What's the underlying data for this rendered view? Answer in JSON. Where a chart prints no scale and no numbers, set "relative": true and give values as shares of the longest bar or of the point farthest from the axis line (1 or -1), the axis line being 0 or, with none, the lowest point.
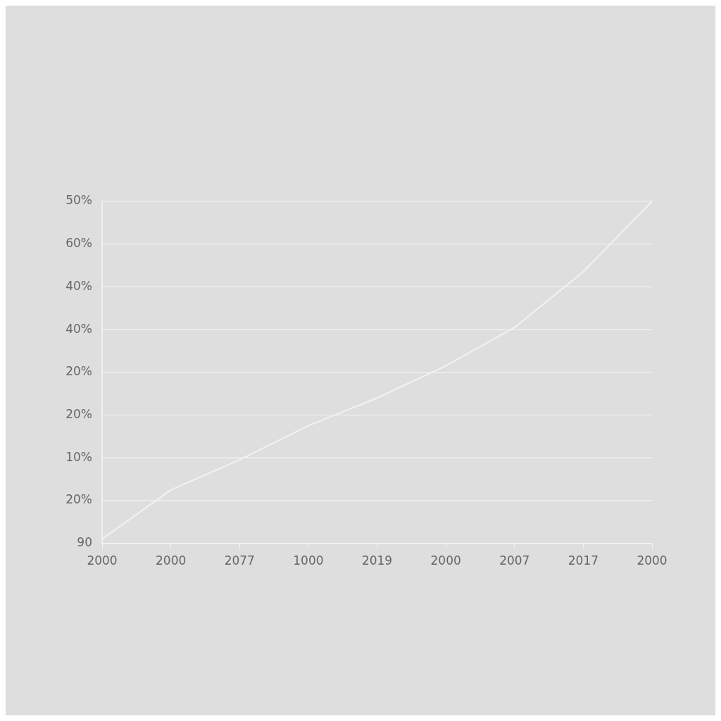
{
  "chart_data": {
    "type": "line",
    "categories": [
      "2000",
      "2000",
      "2077",
      "1000",
      "2019",
      "2000",
      "2007",
      "2017",
      "2000"
    ],
    "series": [
      {
        "color": "#f2f2f2",
        "values": [
          0.0125,
          0.156,
          0.244,
          0.344,
          0.425,
          0.519,
          0.631,
          0.794,
          1
        ]
      }
    ],
    "relative": true,
    "annotations": [
      "50%",
      "60%",
      "40%",
      "40%",
      "20%",
      "20%",
      "10%",
      "20%",
      "90"
    ],
    "grid": "y",
    "marker": "none",
    "line_style": "solid"
  }
}
